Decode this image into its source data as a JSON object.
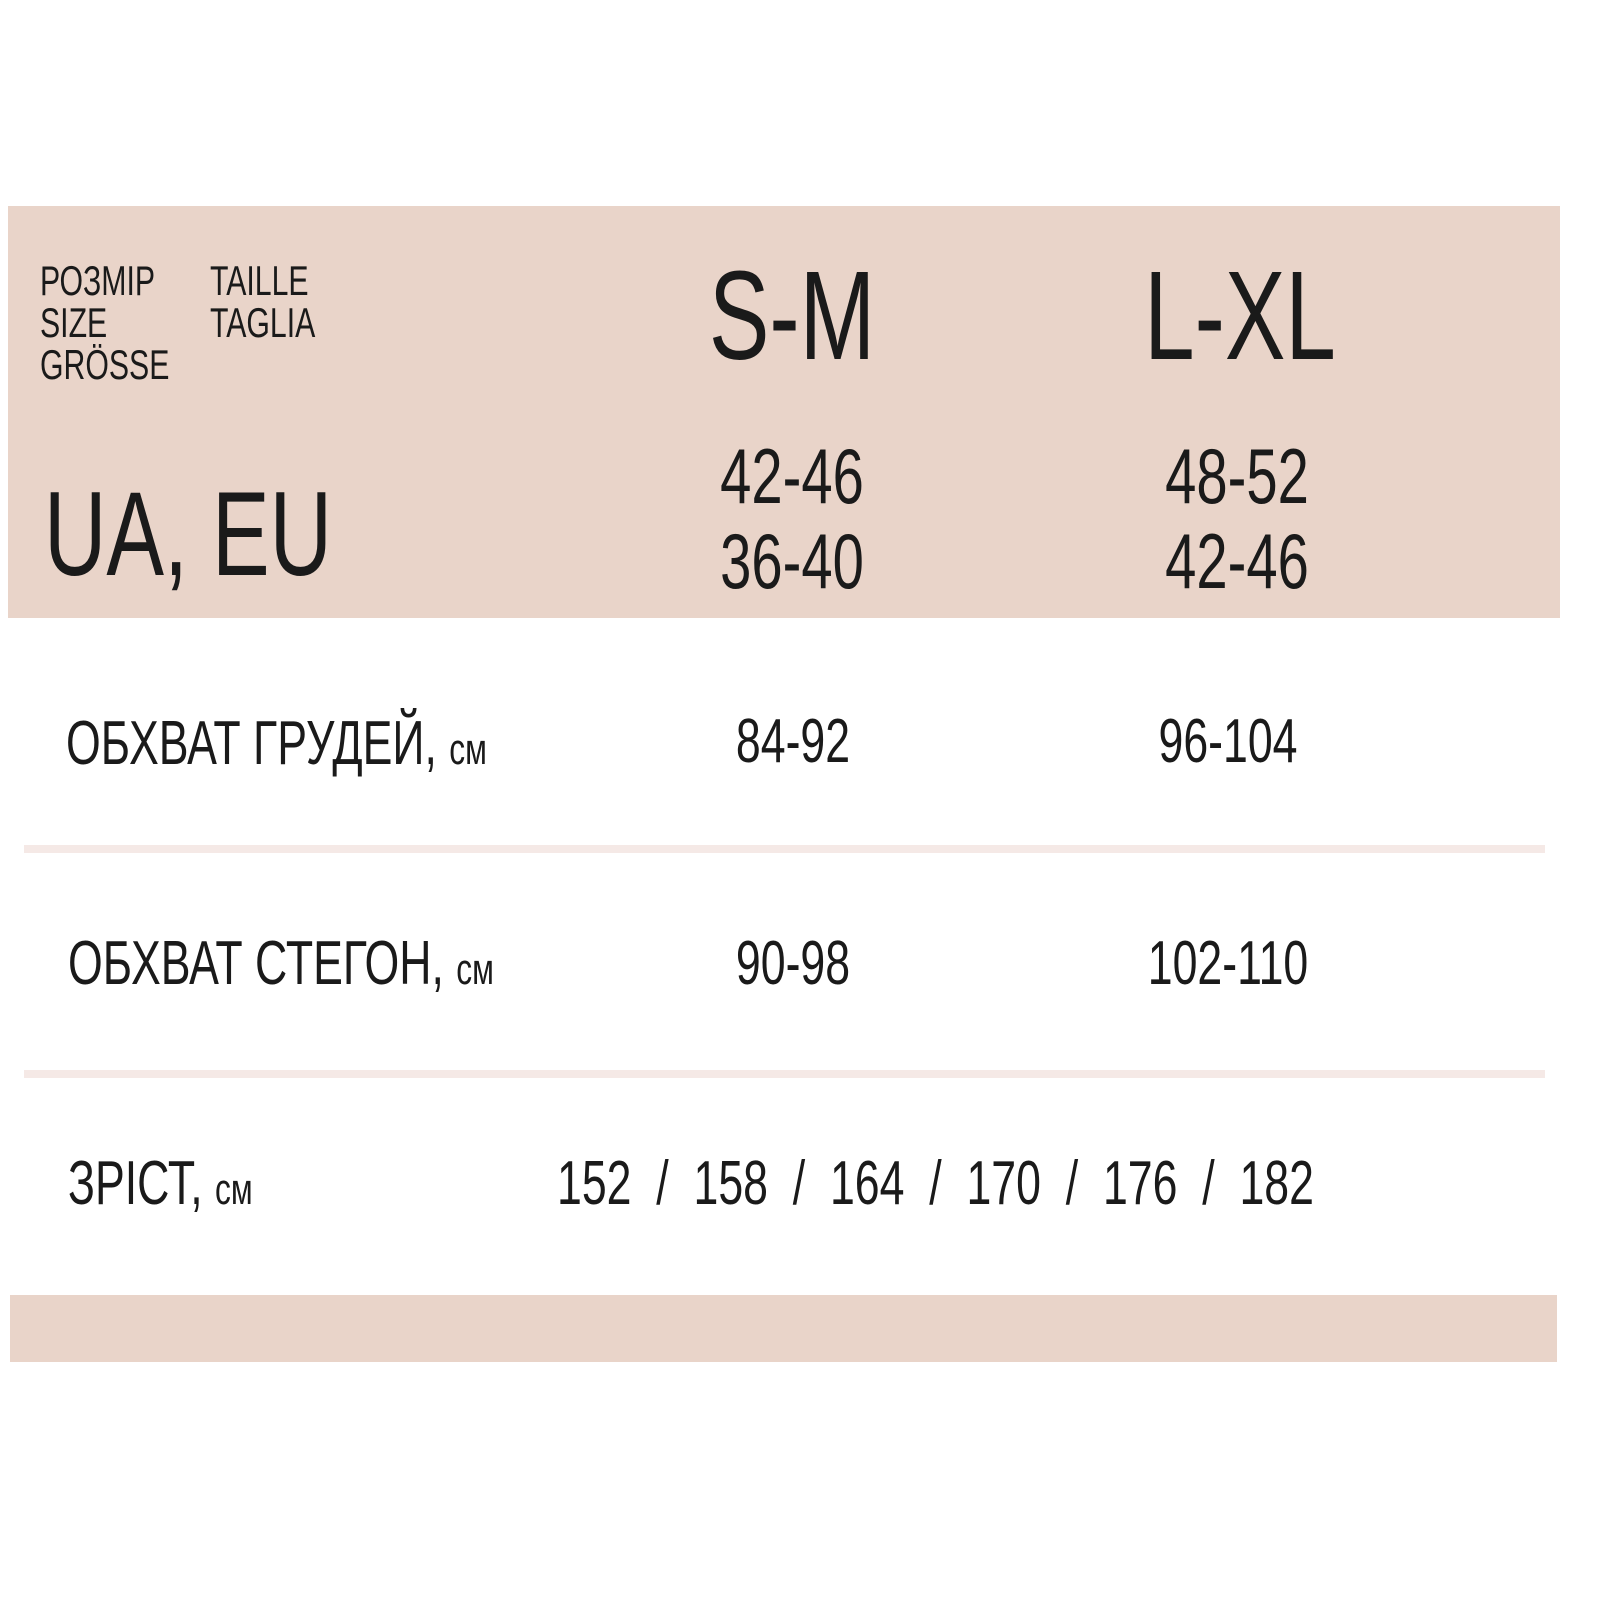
{
  "colors": {
    "band": "#e9d4c9",
    "divider": "#f5e9e6",
    "text": "#1a1a1a"
  },
  "header": {
    "size_labels_left": [
      "РОЗМІР",
      "SIZE",
      "GRÖSSE"
    ],
    "size_labels_right": [
      "TAILLE",
      "TAGLIA"
    ],
    "region_label": "UA, EU",
    "sizes": [
      {
        "name": "S-M",
        "ua": "42-46",
        "eu": "36-40"
      },
      {
        "name": "L-XL",
        "ua": "48-52",
        "eu": "42-46"
      }
    ]
  },
  "rows": [
    {
      "label": "ОБХВАТ ГРУДЕЙ,",
      "unit": "см",
      "values": [
        "84-92",
        "96-104"
      ]
    },
    {
      "label": "ОБХВАТ СТЕГОН,",
      "unit": "см",
      "values": [
        "90-98",
        "102-110"
      ]
    },
    {
      "label": "ЗРІСТ,",
      "unit": "см",
      "value": "152  /  158  /  164  /  170  /  176  /  182"
    }
  ]
}
